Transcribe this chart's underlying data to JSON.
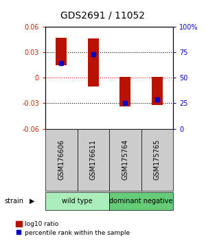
{
  "title": "GDS2691 / 11052",
  "samples": [
    "GSM176606",
    "GSM176611",
    "GSM175764",
    "GSM175765"
  ],
  "bar_bottoms": [
    0.015,
    -0.01,
    -0.034,
    -0.032
  ],
  "bar_tops": [
    0.047,
    0.046,
    0.001,
    0.001
  ],
  "blue_marker_values": [
    0.017,
    0.028,
    -0.03,
    -0.026
  ],
  "ylim": [
    -0.06,
    0.06
  ],
  "yticks_left": [
    -0.06,
    -0.03,
    0,
    0.03,
    0.06
  ],
  "yticks_right": [
    0,
    25,
    50,
    75,
    100
  ],
  "yticks_right_pos": [
    -0.06,
    -0.03,
    0,
    0.03,
    0.06
  ],
  "hlines_dotted": [
    -0.03,
    0.03
  ],
  "hline_red": 0.0,
  "bar_color": "#bb1100",
  "blue_color": "#0000cc",
  "bar_width": 0.35,
  "group_labels": [
    "wild type",
    "dominant negative"
  ],
  "group_colors": [
    "#aaeebb",
    "#66cc77"
  ],
  "strain_label": "strain",
  "legend_red_label": "log10 ratio",
  "legend_blue_label": "percentile rank within the sample",
  "title_fontsize": 10,
  "axis_label_color_left": "#cc2200",
  "axis_label_color_right": "#0000cc",
  "sample_cell_color": "#cccccc",
  "tick_fontsize": 7
}
